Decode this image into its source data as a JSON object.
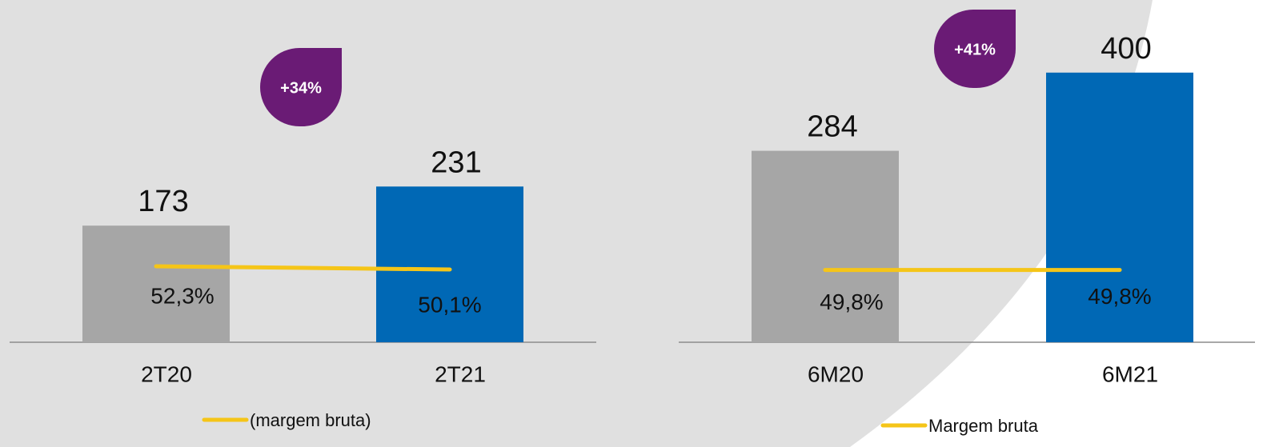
{
  "chart_data": [
    {
      "type": "bar",
      "categories": [
        "2T20",
        "2T21"
      ],
      "values": [
        173,
        231
      ],
      "colors": [
        "#a6a6a6",
        "#0068b5"
      ],
      "series": [
        {
          "name": "(margem bruta)",
          "type": "line",
          "color": "#f5c518",
          "values": [
            52.3,
            50.1
          ],
          "value_labels": [
            "52,3%",
            "50,1%"
          ]
        }
      ],
      "annotation": "+34%"
    },
    {
      "type": "bar",
      "categories": [
        "6M20",
        "6M21"
      ],
      "values": [
        284,
        400
      ],
      "colors": [
        "#a6a6a6",
        "#0068b5"
      ],
      "series": [
        {
          "name": "Margem bruta",
          "type": "line",
          "color": "#f5c518",
          "values": [
            49.8,
            49.8
          ],
          "value_labels": [
            "49,8%",
            "49,8%"
          ]
        }
      ],
      "annotation": "+41%"
    }
  ]
}
